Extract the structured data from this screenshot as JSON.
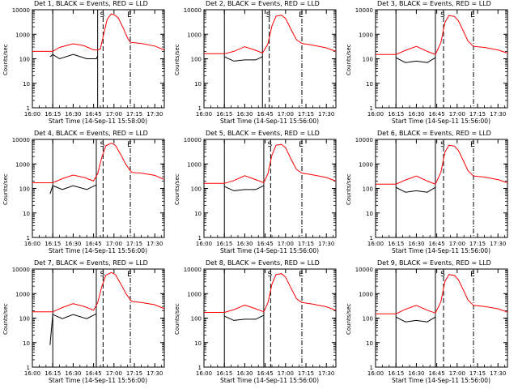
{
  "chart_data": [
    {
      "type": "line",
      "title": "Det 1, BLACK = Events, RED = LLD",
      "xlabel": "Start Time (14-Sep-11 15:58:00)",
      "ylabel": "Counts/sec",
      "yscale": "log",
      "ylim": [
        1,
        10000
      ],
      "xlim": [
        "16:00",
        "17:37"
      ],
      "x_ticks": [
        "16:00",
        "16:15",
        "16:30",
        "16:45",
        "17:00",
        "17:15",
        "17:30"
      ],
      "y_ticks": [
        "1",
        "10",
        "100",
        "1000",
        "10000"
      ],
      "markers": [
        {
          "time": "16:15",
          "style": "solid",
          "label": ""
        },
        {
          "time": "16:48",
          "style": "solid",
          "label": ""
        },
        {
          "time": "16:52",
          "style": "dashed",
          "label": "S"
        },
        {
          "time": "17:12",
          "style": "dash-dot",
          "label": "E"
        }
      ],
      "series": [
        {
          "color": "#ff0000",
          "x": [
            "16:00",
            "16:15",
            "16:20",
            "16:30",
            "16:38",
            "16:45",
            "16:48",
            "16:50",
            "16:52",
            "16:55",
            "16:58",
            "17:00",
            "17:03",
            "17:07",
            "17:10",
            "17:12",
            "17:20",
            "17:30",
            "17:37"
          ],
          "y": [
            200,
            200,
            290,
            410,
            340,
            230,
            230,
            250,
            800,
            4000,
            6800,
            6300,
            4800,
            1700,
            700,
            470,
            420,
            330,
            230
          ]
        },
        {
          "color": "#000000",
          "x": [
            "16:13",
            "16:15",
            "16:20",
            "16:30",
            "16:40",
            "16:47",
            "16:48"
          ],
          "y": [
            120,
            150,
            100,
            150,
            100,
            100,
            130
          ]
        }
      ],
      "grid": false
    },
    {
      "type": "line",
      "title": "Det 2, BLACK = Events, RED = LLD",
      "xlabel": "Start Time (14-Sep-11 15:56:00)",
      "ylabel": "Counts/sec",
      "yscale": "log",
      "ylim": [
        1,
        10000
      ],
      "xlim": [
        "16:00",
        "17:37"
      ],
      "x_ticks": [
        "16:00",
        "16:15",
        "16:30",
        "16:45",
        "17:00",
        "17:15",
        "17:30"
      ],
      "y_ticks": [
        "1",
        "10",
        "100",
        "1000",
        "10000"
      ],
      "markers": [
        {
          "time": "16:15",
          "style": "solid",
          "label": ""
        },
        {
          "time": "16:43",
          "style": "solid",
          "label": ""
        },
        {
          "time": "16:48",
          "style": "dashed",
          "label": "S"
        },
        {
          "time": "17:12",
          "style": "dash-dot",
          "label": "E"
        }
      ],
      "series": [
        {
          "color": "#ff0000",
          "x": [
            "16:00",
            "16:15",
            "16:22",
            "16:30",
            "16:38",
            "16:43",
            "16:47",
            "16:50",
            "16:53",
            "16:57",
            "17:00",
            "17:04",
            "17:08",
            "17:12",
            "17:20",
            "17:30",
            "17:37"
          ],
          "y": [
            160,
            160,
            200,
            310,
            220,
            170,
            400,
            2200,
            5500,
            6000,
            4400,
            1600,
            600,
            420,
            360,
            280,
            200
          ]
        },
        {
          "color": "#000000",
          "x": [
            "16:15",
            "16:22",
            "16:30",
            "16:38",
            "16:43"
          ],
          "y": [
            120,
            80,
            90,
            90,
            120
          ]
        }
      ],
      "grid": false
    },
    {
      "type": "line",
      "title": "Det 3, BLACK = Events, RED = LLD",
      "xlabel": "Start Time (14-Sep-11 15:56:00)",
      "ylabel": "Counts/sec",
      "yscale": "log",
      "ylim": [
        1,
        10000
      ],
      "xlim": [
        "16:00",
        "17:37"
      ],
      "x_ticks": [
        "16:00",
        "16:15",
        "16:30",
        "16:45",
        "17:00",
        "17:15",
        "17:30"
      ],
      "y_ticks": [
        "1",
        "10",
        "100",
        "1000",
        "10000"
      ],
      "markers": [
        {
          "time": "16:15",
          "style": "solid",
          "label": ""
        },
        {
          "time": "16:44",
          "style": "solid",
          "label": ""
        },
        {
          "time": "16:50",
          "style": "dashed",
          "label": "S"
        },
        {
          "time": "17:12",
          "style": "dash-dot",
          "label": "E"
        }
      ],
      "series": [
        {
          "color": "#ff0000",
          "x": [
            "16:00",
            "16:15",
            "16:22",
            "16:30",
            "16:38",
            "16:44",
            "16:48",
            "16:51",
            "16:54",
            "16:58",
            "17:01",
            "17:05",
            "17:08",
            "17:12",
            "17:20",
            "17:30",
            "17:37"
          ],
          "y": [
            150,
            150,
            220,
            320,
            200,
            150,
            450,
            3000,
            5800,
            5300,
            3500,
            1200,
            520,
            320,
            290,
            230,
            170
          ]
        },
        {
          "color": "#000000",
          "x": [
            "16:15",
            "16:22",
            "16:30",
            "16:38",
            "16:44"
          ],
          "y": [
            110,
            70,
            80,
            70,
            110
          ]
        }
      ],
      "grid": false
    },
    {
      "type": "line",
      "title": "Det 4, BLACK = Events, RED = LLD",
      "xlabel": "Start Time (14-Sep-11 15:56:00)",
      "ylabel": "Counts/sec",
      "yscale": "log",
      "ylim": [
        1,
        10000
      ],
      "xlim": [
        "16:00",
        "17:37"
      ],
      "x_ticks": [
        "16:00",
        "16:15",
        "16:30",
        "16:45",
        "17:00",
        "17:15",
        "17:30"
      ],
      "y_ticks": [
        "1",
        "10",
        "100",
        "1000",
        "10000"
      ],
      "markers": [
        {
          "time": "16:15",
          "style": "solid",
          "label": ""
        },
        {
          "time": "16:47",
          "style": "solid",
          "label": ""
        },
        {
          "time": "16:52",
          "style": "dashed",
          "label": "S"
        },
        {
          "time": "17:12",
          "style": "dash-dot",
          "label": "E"
        }
      ],
      "series": [
        {
          "color": "#ff0000",
          "x": [
            "16:00",
            "16:15",
            "16:22",
            "16:30",
            "16:38",
            "16:45",
            "16:48",
            "16:51",
            "16:54",
            "16:58",
            "17:01",
            "17:05",
            "17:09",
            "17:13",
            "17:20",
            "17:30",
            "17:37"
          ],
          "y": [
            170,
            170,
            250,
            350,
            280,
            200,
            400,
            1800,
            5500,
            7000,
            5800,
            2400,
            900,
            450,
            420,
            340,
            230
          ]
        },
        {
          "color": "#000000",
          "x": [
            "16:13",
            "16:15",
            "16:22",
            "16:30",
            "16:40",
            "16:47"
          ],
          "y": [
            60,
            130,
            90,
            130,
            90,
            140
          ]
        }
      ],
      "grid": false
    },
    {
      "type": "line",
      "title": "Det 5, BLACK = Events, RED = LLD",
      "xlabel": "Start Time (14-Sep-11 15:56:00)",
      "ylabel": "Counts/sec",
      "yscale": "log",
      "ylim": [
        1,
        10000
      ],
      "xlim": [
        "16:00",
        "17:37"
      ],
      "x_ticks": [
        "16:00",
        "16:15",
        "16:30",
        "16:45",
        "17:00",
        "17:15",
        "17:30"
      ],
      "y_ticks": [
        "1",
        "10",
        "100",
        "1000",
        "10000"
      ],
      "markers": [
        {
          "time": "16:15",
          "style": "solid",
          "label": ""
        },
        {
          "time": "16:44",
          "style": "solid",
          "label": ""
        },
        {
          "time": "16:49",
          "style": "dashed",
          "label": "S"
        },
        {
          "time": "17:12",
          "style": "dash-dot",
          "label": "E"
        }
      ],
      "series": [
        {
          "color": "#ff0000",
          "x": [
            "16:00",
            "16:15",
            "16:22",
            "16:30",
            "16:38",
            "16:44",
            "16:47",
            "16:50",
            "16:53",
            "16:57",
            "17:00",
            "17:04",
            "17:08",
            "17:12",
            "17:20",
            "17:30",
            "17:37"
          ],
          "y": [
            160,
            160,
            210,
            330,
            230,
            170,
            400,
            2300,
            5800,
            6300,
            4600,
            1600,
            600,
            420,
            360,
            280,
            200
          ]
        },
        {
          "color": "#000000",
          "x": [
            "16:15",
            "16:22",
            "16:30",
            "16:38",
            "16:44"
          ],
          "y": [
            120,
            80,
            90,
            90,
            130
          ]
        }
      ],
      "grid": false
    },
    {
      "type": "line",
      "title": "Det 6, BLACK = Events, RED = LLD",
      "xlabel": "Start Time (14-Sep-11 15:56:00)",
      "ylabel": "Counts/sec",
      "yscale": "log",
      "ylim": [
        1,
        10000
      ],
      "xlim": [
        "16:00",
        "17:37"
      ],
      "x_ticks": [
        "16:00",
        "16:15",
        "16:30",
        "16:45",
        "17:00",
        "17:15",
        "17:30"
      ],
      "y_ticks": [
        "1",
        "10",
        "100",
        "1000",
        "10000"
      ],
      "markers": [
        {
          "time": "16:15",
          "style": "solid",
          "label": ""
        },
        {
          "time": "16:44",
          "style": "solid",
          "label": ""
        },
        {
          "time": "16:50",
          "style": "dashed",
          "label": "S"
        },
        {
          "time": "17:12",
          "style": "dash-dot",
          "label": "E"
        }
      ],
      "series": [
        {
          "color": "#ff0000",
          "x": [
            "16:00",
            "16:15",
            "16:22",
            "16:30",
            "16:38",
            "16:44",
            "16:48",
            "16:51",
            "16:54",
            "16:58",
            "17:01",
            "17:05",
            "17:08",
            "17:12",
            "17:20",
            "17:30",
            "17:37"
          ],
          "y": [
            150,
            150,
            220,
            320,
            200,
            150,
            450,
            3000,
            5800,
            5300,
            3500,
            1200,
            520,
            320,
            290,
            230,
            170
          ]
        },
        {
          "color": "#000000",
          "x": [
            "16:15",
            "16:22",
            "16:30",
            "16:38",
            "16:44"
          ],
          "y": [
            110,
            70,
            80,
            70,
            110
          ]
        }
      ],
      "grid": false
    },
    {
      "type": "line",
      "title": "Det 7, BLACK = Events, RED = LLD",
      "xlabel": "Start Time (14-Sep-11 15:56:00)",
      "ylabel": "Counts/sec",
      "yscale": "log",
      "ylim": [
        1,
        10000
      ],
      "xlim": [
        "16:00",
        "17:37"
      ],
      "x_ticks": [
        "16:00",
        "16:15",
        "16:30",
        "16:45",
        "17:00",
        "17:15",
        "17:30"
      ],
      "y_ticks": [
        "1",
        "10",
        "100",
        "1000",
        "10000"
      ],
      "markers": [
        {
          "time": "16:15",
          "style": "solid",
          "label": ""
        },
        {
          "time": "16:47",
          "style": "solid",
          "label": ""
        },
        {
          "time": "16:52",
          "style": "dashed",
          "label": "S"
        },
        {
          "time": "17:12",
          "style": "dash-dot",
          "label": "E"
        }
      ],
      "series": [
        {
          "color": "#ff0000",
          "x": [
            "16:00",
            "16:15",
            "16:22",
            "16:30",
            "16:38",
            "16:45",
            "16:48",
            "16:51",
            "16:54",
            "16:58",
            "17:01",
            "17:05",
            "17:09",
            "17:13",
            "17:20",
            "17:30",
            "17:37"
          ],
          "y": [
            180,
            180,
            270,
            390,
            300,
            210,
            420,
            1900,
            5600,
            7200,
            6000,
            2500,
            950,
            480,
            430,
            350,
            240
          ]
        },
        {
          "color": "#000000",
          "x": [
            "16:13",
            "16:15",
            "16:22",
            "16:30",
            "16:40",
            "16:47"
          ],
          "y": [
            8,
            140,
            95,
            140,
            95,
            150
          ]
        }
      ],
      "grid": false
    },
    {
      "type": "line",
      "title": "Det 8, BLACK = Events, RED = LLD",
      "xlabel": "Start Time (14-Sep-11 15:56:00)",
      "ylabel": "Counts/sec",
      "yscale": "log",
      "ylim": [
        1,
        10000
      ],
      "xlim": [
        "16:00",
        "17:37"
      ],
      "x_ticks": [
        "16:00",
        "16:15",
        "16:30",
        "16:45",
        "17:00",
        "17:15",
        "17:30"
      ],
      "y_ticks": [
        "1",
        "10",
        "100",
        "1000",
        "10000"
      ],
      "markers": [
        {
          "time": "16:15",
          "style": "solid",
          "label": ""
        },
        {
          "time": "16:44",
          "style": "solid",
          "label": ""
        },
        {
          "time": "16:49",
          "style": "dashed",
          "label": "S"
        },
        {
          "time": "17:12",
          "style": "dash-dot",
          "label": "E"
        }
      ],
      "series": [
        {
          "color": "#ff0000",
          "x": [
            "16:00",
            "16:15",
            "16:22",
            "16:30",
            "16:38",
            "16:44",
            "16:47",
            "16:50",
            "16:53",
            "16:57",
            "17:00",
            "17:04",
            "17:08",
            "17:12",
            "17:20",
            "17:30",
            "17:37"
          ],
          "y": [
            170,
            170,
            220,
            340,
            240,
            180,
            420,
            2400,
            6000,
            6500,
            4700,
            1700,
            620,
            430,
            370,
            290,
            210
          ]
        },
        {
          "color": "#000000",
          "x": [
            "16:15",
            "16:22",
            "16:30",
            "16:38",
            "16:44"
          ],
          "y": [
            120,
            80,
            90,
            90,
            130
          ]
        }
      ],
      "grid": false
    },
    {
      "type": "line",
      "title": "Det 9, BLACK = Events, RED = LLD",
      "xlabel": "Start Time (14-Sep-11 15:56:00)",
      "ylabel": "Counts/sec",
      "yscale": "log",
      "ylim": [
        1,
        10000
      ],
      "xlim": [
        "16:00",
        "17:37"
      ],
      "x_ticks": [
        "16:00",
        "16:15",
        "16:30",
        "16:45",
        "17:00",
        "17:15",
        "17:30"
      ],
      "y_ticks": [
        "1",
        "10",
        "100",
        "1000",
        "10000"
      ],
      "markers": [
        {
          "time": "16:15",
          "style": "solid",
          "label": ""
        },
        {
          "time": "16:44",
          "style": "solid",
          "label": ""
        },
        {
          "time": "16:50",
          "style": "dashed",
          "label": "S"
        },
        {
          "time": "17:12",
          "style": "dash-dot",
          "label": "E"
        }
      ],
      "series": [
        {
          "color": "#ff0000",
          "x": [
            "16:00",
            "16:15",
            "16:22",
            "16:30",
            "16:38",
            "16:44",
            "16:48",
            "16:51",
            "16:54",
            "16:58",
            "17:01",
            "17:05",
            "17:08",
            "17:12",
            "17:20",
            "17:30",
            "17:37"
          ],
          "y": [
            150,
            150,
            230,
            330,
            210,
            160,
            460,
            3100,
            6000,
            5500,
            3600,
            1250,
            540,
            330,
            300,
            240,
            175
          ]
        },
        {
          "color": "#000000",
          "x": [
            "16:15",
            "16:22",
            "16:30",
            "16:38",
            "16:44"
          ],
          "y": [
            110,
            70,
            80,
            70,
            110
          ]
        }
      ],
      "grid": false
    }
  ]
}
